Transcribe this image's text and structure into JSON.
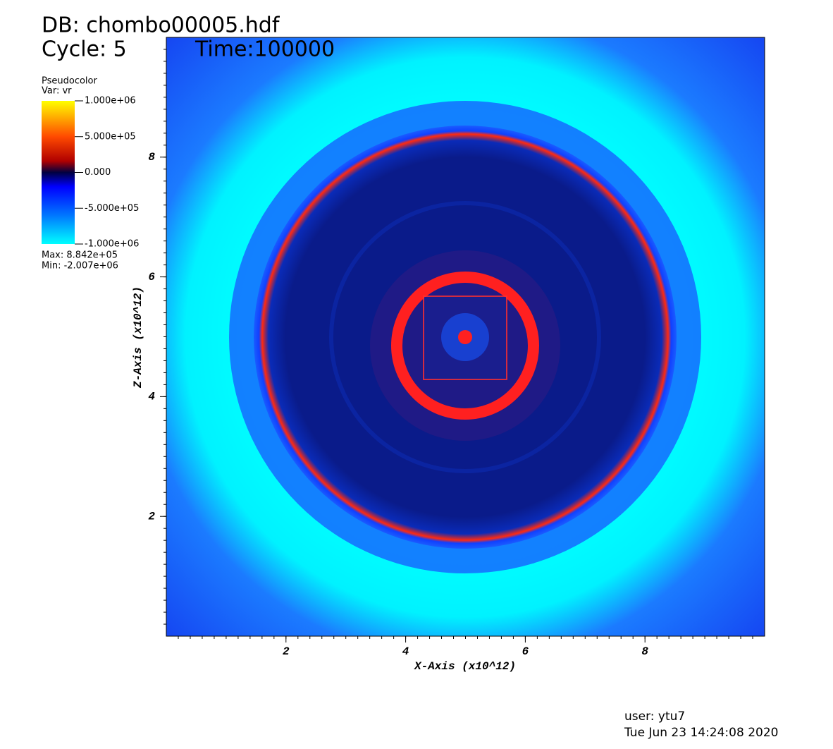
{
  "header": {
    "database": "DB: chombo00005.hdf",
    "cycle": "Cycle: 5",
    "time": "Time:100000"
  },
  "legend": {
    "plot_type": "Pseudocolor",
    "variable": "Var: vr",
    "range": [
      -1000000,
      1000000
    ],
    "ticks": [
      {
        "value": 1000000,
        "label": "1.000e+06"
      },
      {
        "value": 500000,
        "label": "5.000e+05"
      },
      {
        "value": 0,
        "label": "0.000"
      },
      {
        "value": -500000,
        "label": "-5.000e+05"
      },
      {
        "value": -1000000,
        "label": "-1.000e+06"
      }
    ],
    "max": "Max:  8.842e+05",
    "min": "Min: -2.007e+06"
  },
  "axes": {
    "x_label": "X-Axis (x10^12)",
    "y_label": "Z-Axis (x10^12)",
    "xlim": [
      0,
      10
    ],
    "ylim": [
      0,
      10
    ],
    "xticks": [
      2,
      4,
      6,
      8
    ],
    "yticks": [
      2,
      4,
      6,
      8
    ]
  },
  "footer": {
    "user": "user: ytu7",
    "date": "Tue Jun 23 14:24:08 2020"
  }
}
